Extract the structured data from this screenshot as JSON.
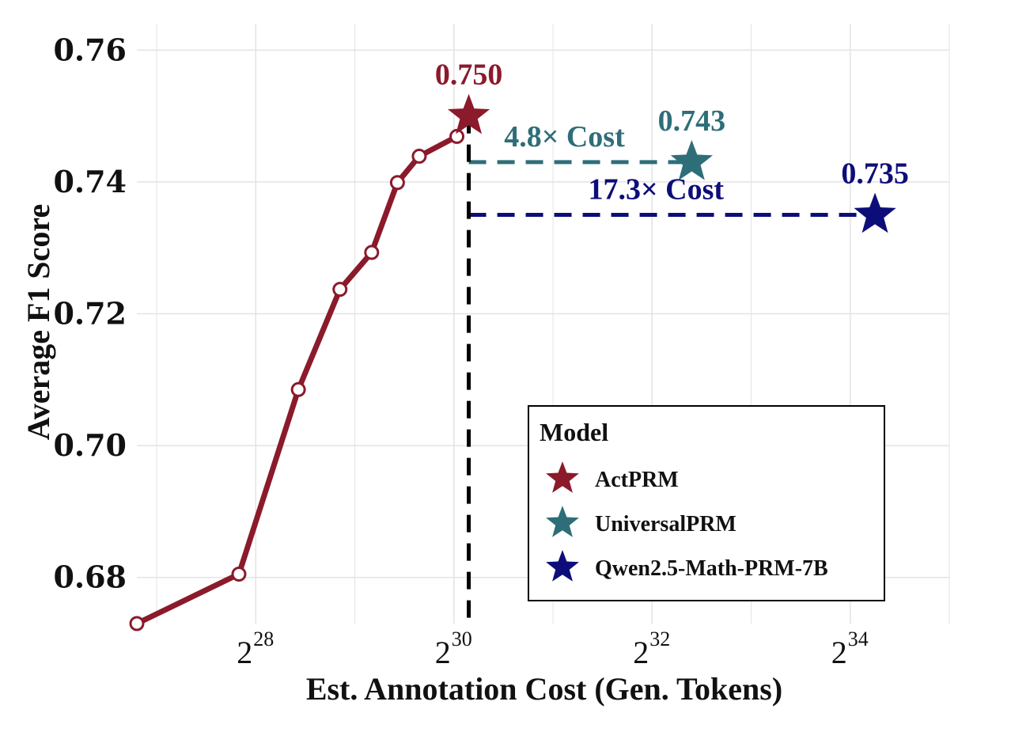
{
  "chart_data": {
    "type": "line",
    "xlabel": "Est. Annotation Cost (Gen. Tokens)",
    "ylabel": "Average F1 Score",
    "x_scale": "log2",
    "xlim_log2": [
      26.8,
      35.0
    ],
    "ylim": [
      0.673,
      0.764
    ],
    "grid": true,
    "x_ticks": [
      {
        "base": "2",
        "exp": "28",
        "log2": 28
      },
      {
        "base": "2",
        "exp": "30",
        "log2": 30
      },
      {
        "base": "2",
        "exp": "32",
        "log2": 32
      },
      {
        "base": "2",
        "exp": "34",
        "log2": 34
      }
    ],
    "y_ticks": [
      {
        "label": "0.68",
        "value": 0.68
      },
      {
        "label": "0.70",
        "value": 0.7
      },
      {
        "label": "0.72",
        "value": 0.72
      },
      {
        "label": "0.74",
        "value": 0.74
      },
      {
        "label": "0.76",
        "value": 0.76
      }
    ],
    "curve": {
      "color": "#8b1a2b",
      "x_log2": [
        26.8,
        27.83,
        28.43,
        28.85,
        29.17,
        29.43,
        29.65,
        30.03
      ],
      "y": [
        0.673,
        0.6805,
        0.7085,
        0.7237,
        0.7293,
        0.7399,
        0.7439,
        0.7469
      ]
    },
    "stars": [
      {
        "name": "ActPRM",
        "x_log2": 30.15,
        "y": 0.75,
        "label": "0.750",
        "color": "#8b1a2b"
      },
      {
        "name": "UniversalPRM",
        "x_log2": 32.4,
        "y": 0.743,
        "label": "0.743",
        "color": "#2e6e78"
      },
      {
        "name": "Qwen2.5-Math-PRM-7B",
        "x_log2": 34.25,
        "y": 0.735,
        "label": "0.735",
        "color": "#0d0d7a"
      }
    ],
    "vline": {
      "x_log2": 30.15,
      "color": "#000000"
    },
    "hlines": [
      {
        "y": 0.743,
        "x_from_log2": 30.15,
        "x_to_log2": 32.4,
        "color": "#2e6e78",
        "label": "4.8× Cost"
      },
      {
        "y": 0.735,
        "x_from_log2": 30.15,
        "x_to_log2": 34.25,
        "color": "#0d0d7a",
        "label": "17.3× Cost"
      }
    ],
    "legend": {
      "title": "Model",
      "placement": "bottom-right",
      "entries": [
        {
          "label": "ActPRM",
          "color": "#8b1a2b"
        },
        {
          "label": "UniversalPRM",
          "color": "#2e6e78"
        },
        {
          "label": "Qwen2.5-Math-PRM-7B",
          "color": "#0d0d7a"
        }
      ]
    }
  }
}
